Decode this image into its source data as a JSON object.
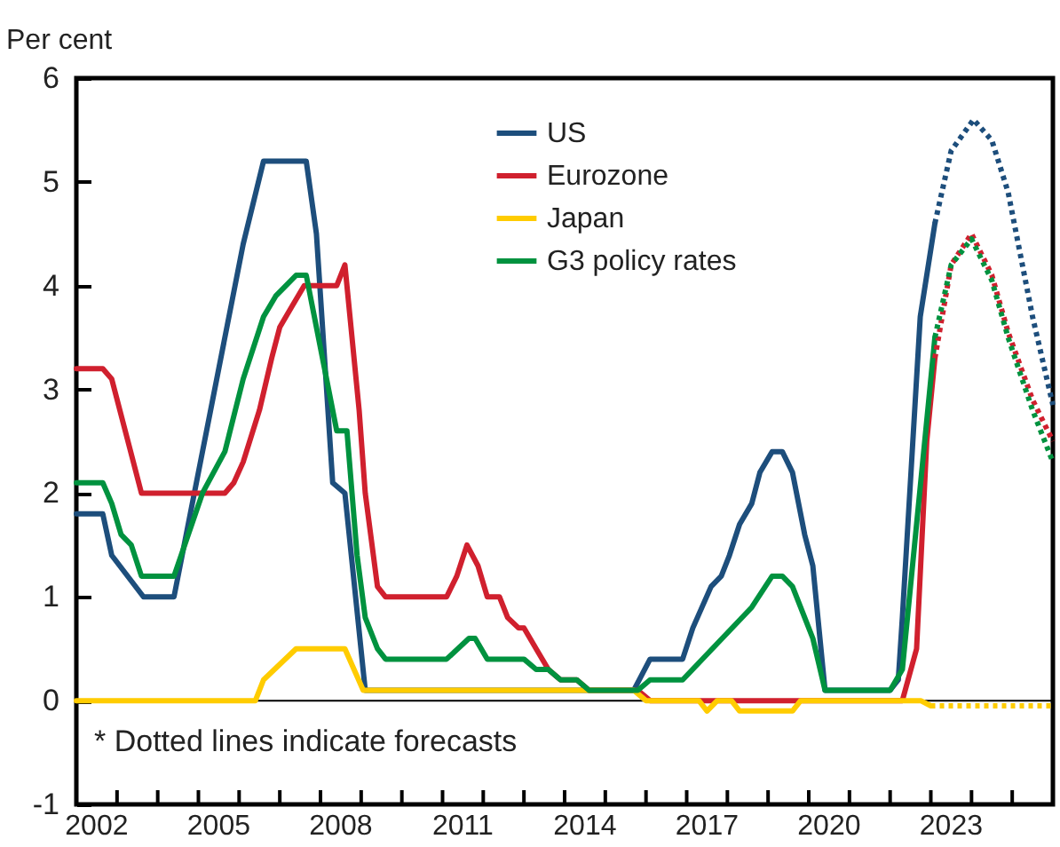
{
  "chart_data": {
    "type": "line",
    "ylabel": "Per cent",
    "xlim": [
      2002,
      2026
    ],
    "ylim": [
      -1,
      6
    ],
    "yticks": [
      -1,
      0,
      1,
      2,
      3,
      4,
      5,
      6
    ],
    "xticks": [
      {
        "value": 2002.5,
        "label": "2002"
      },
      {
        "value": 2003,
        "label": null
      },
      {
        "value": 2004,
        "label": null
      },
      {
        "value": 2005,
        "label": null
      },
      {
        "value": 2005.5,
        "label": "2005"
      },
      {
        "value": 2006,
        "label": null
      },
      {
        "value": 2007,
        "label": null
      },
      {
        "value": 2008,
        "label": null
      },
      {
        "value": 2008.5,
        "label": "2008"
      },
      {
        "value": 2009,
        "label": null
      },
      {
        "value": 2010,
        "label": null
      },
      {
        "value": 2011,
        "label": null
      },
      {
        "value": 2011.5,
        "label": "2011"
      },
      {
        "value": 2012,
        "label": null
      },
      {
        "value": 2013,
        "label": null
      },
      {
        "value": 2014,
        "label": null
      },
      {
        "value": 2014.5,
        "label": "2014"
      },
      {
        "value": 2015,
        "label": null
      },
      {
        "value": 2016,
        "label": null
      },
      {
        "value": 2017,
        "label": null
      },
      {
        "value": 2017.5,
        "label": "2017"
      },
      {
        "value": 2018,
        "label": null
      },
      {
        "value": 2019,
        "label": null
      },
      {
        "value": 2020,
        "label": null
      },
      {
        "value": 2020.5,
        "label": "2020"
      },
      {
        "value": 2021,
        "label": null
      },
      {
        "value": 2022,
        "label": null
      },
      {
        "value": 2023,
        "label": null
      },
      {
        "value": 2023.5,
        "label": "2023"
      },
      {
        "value": 2024,
        "label": null
      },
      {
        "value": 2025,
        "label": null
      }
    ],
    "grid": false,
    "legend": "top",
    "line_style": "solid",
    "ref_lines": [
      {
        "axis": "y",
        "value": 0,
        "label": null,
        "color": "#000000"
      }
    ],
    "annotations": [
      "* Dotted lines indicate forecasts"
    ],
    "series": [
      {
        "name": "US",
        "color": "#1d4e7c",
        "x": [
          2002,
          2002.65,
          2002.87,
          2003.65,
          2004.4,
          2004.9,
          2005.2,
          2005.9,
          2006.1,
          2006.6,
          2007.65,
          2007.9,
          2008.3,
          2008.6,
          2009.1,
          2015.7,
          2016.1,
          2016.9,
          2017.15,
          2017.6,
          2017.85,
          2018.05,
          2018.3,
          2018.6,
          2018.8,
          2019.1,
          2019.35,
          2019.6,
          2019.9,
          2020.1,
          2020.4,
          2022.0,
          2022.2,
          2022.3,
          2022.74,
          2023.1
        ],
        "values": [
          1.8,
          1.8,
          1.4,
          1.0,
          1.0,
          2.0,
          2.6,
          4.0,
          4.4,
          5.2,
          5.2,
          4.5,
          2.1,
          2.0,
          0.1,
          0.1,
          0.4,
          0.4,
          0.7,
          1.1,
          1.2,
          1.4,
          1.7,
          1.9,
          2.2,
          2.4,
          2.4,
          2.2,
          1.6,
          1.3,
          0.1,
          0.1,
          0.2,
          0.8,
          3.7,
          4.6
        ]
      },
      {
        "name": "Eurozone",
        "color": "#d0202e",
        "x": [
          2002,
          2002.65,
          2002.87,
          2003.6,
          2005.65,
          2005.87,
          2006.1,
          2006.5,
          2006.8,
          2007.0,
          2007.3,
          2007.6,
          2008.4,
          2008.6,
          2008.95,
          2009.1,
          2009.4,
          2009.6,
          2011.1,
          2011.35,
          2011.6,
          2011.87,
          2012.1,
          2012.4,
          2012.6,
          2012.87,
          2013.0,
          2013.3,
          2013.6,
          2013.9,
          2014.3,
          2014.6,
          2015.8,
          2016.1,
          2022.3,
          2022.65,
          2022.9,
          2023.1
        ],
        "values": [
          3.2,
          3.2,
          3.1,
          2.0,
          2.0,
          2.1,
          2.3,
          2.8,
          3.3,
          3.6,
          3.8,
          4.0,
          4.0,
          4.2,
          2.8,
          2.0,
          1.1,
          1.0,
          1.0,
          1.2,
          1.5,
          1.3,
          1.0,
          1.0,
          0.8,
          0.7,
          0.7,
          0.5,
          0.3,
          0.2,
          0.2,
          0.1,
          0.1,
          0.0,
          0.0,
          0.5,
          2.5,
          3.3
        ]
      },
      {
        "name": "Japan",
        "color": "#ffcc00",
        "x": [
          2002,
          2006.4,
          2006.6,
          2007.4,
          2008.6,
          2009.05,
          2015.7,
          2016.0,
          2017.3,
          2017.5,
          2017.75,
          2018.1,
          2018.3,
          2019.6,
          2019.8,
          2022.75,
          2023.0
        ],
        "values": [
          0,
          0,
          0.2,
          0.5,
          0.5,
          0.1,
          0.1,
          0,
          0,
          -0.1,
          0,
          0,
          -0.1,
          -0.1,
          0,
          0,
          -0.05
        ]
      },
      {
        "name": "G3 policy rates",
        "color": "#00923f",
        "x": [
          2002,
          2002.65,
          2002.87,
          2003.1,
          2003.35,
          2003.6,
          2004.4,
          2005.1,
          2005.65,
          2006.1,
          2006.6,
          2006.9,
          2007.4,
          2007.65,
          2007.8,
          2008.2,
          2008.4,
          2008.65,
          2008.9,
          2009.1,
          2009.4,
          2009.6,
          2011.1,
          2011.65,
          2011.8,
          2012.1,
          2013.0,
          2013.3,
          2013.6,
          2013.9,
          2014.3,
          2014.6,
          2015.8,
          2016.1,
          2016.9,
          2018.6,
          2019.1,
          2019.35,
          2019.6,
          2019.9,
          2020.1,
          2020.4,
          2022.0,
          2022.3,
          2022.6,
          2023.1
        ],
        "values": [
          2.1,
          2.1,
          1.9,
          1.6,
          1.5,
          1.2,
          1.2,
          2.0,
          2.4,
          3.1,
          3.7,
          3.9,
          4.1,
          4.1,
          3.8,
          3.0,
          2.6,
          2.6,
          1.4,
          0.8,
          0.5,
          0.4,
          0.4,
          0.6,
          0.6,
          0.4,
          0.4,
          0.3,
          0.3,
          0.2,
          0.2,
          0.1,
          0.1,
          0.2,
          0.2,
          0.9,
          1.2,
          1.2,
          1.1,
          0.8,
          0.6,
          0.1,
          0.1,
          0.3,
          1.5,
          3.5
        ]
      },
      {
        "color": "#1d4e7c",
        "line_style": "dotted",
        "x": [
          2023.1,
          2023.5,
          2024.05,
          2024.5,
          2024.9,
          2025.5,
          2026
        ],
        "values": [
          4.6,
          5.3,
          5.6,
          5.4,
          4.9,
          3.7,
          2.85
        ]
      },
      {
        "color": "#d0202e",
        "line_style": "dotted",
        "x": [
          2023.1,
          2023.5,
          2024.0,
          2024.5,
          2024.9,
          2025.5,
          2026
        ],
        "values": [
          3.3,
          4.2,
          4.5,
          4.1,
          3.55,
          2.9,
          2.5
        ]
      },
      {
        "color": "#ffcc00",
        "line_style": "dotted",
        "x": [
          2023.0,
          2026
        ],
        "values": [
          -0.05,
          -0.05
        ]
      },
      {
        "color": "#00923f",
        "line_style": "dotted",
        "x": [
          2023.1,
          2023.5,
          2024.0,
          2024.5,
          2024.9,
          2025.5,
          2026
        ],
        "values": [
          3.5,
          4.2,
          4.45,
          4.05,
          3.5,
          2.8,
          2.3
        ]
      }
    ]
  }
}
